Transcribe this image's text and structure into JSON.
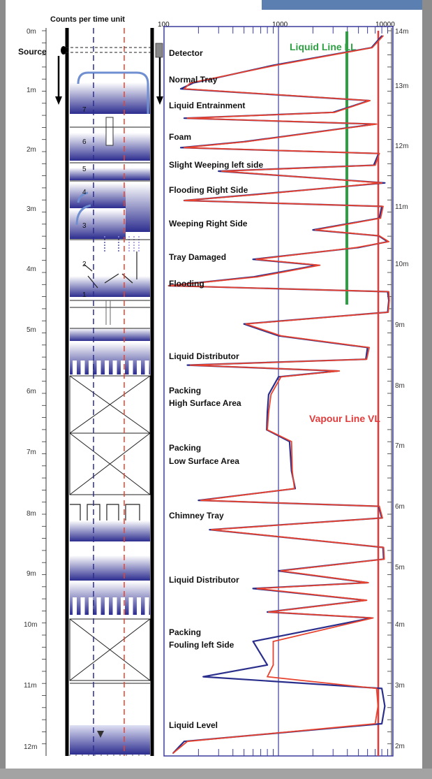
{
  "header": {
    "counts_label": "Counts per time unit"
  },
  "top_scale": {
    "ticks": [
      "100",
      "1000",
      "10000"
    ]
  },
  "left_axis": {
    "ticks": [
      "0m",
      "1m",
      "2m",
      "3m",
      "4m",
      "5m",
      "6m",
      "7m",
      "8m",
      "9m",
      "10m",
      "11m",
      "12m"
    ]
  },
  "right_axis": {
    "ticks": [
      "14m",
      "13m",
      "12m",
      "11m",
      "10m",
      "9m",
      "8m",
      "7m",
      "6m",
      "5m",
      "4m",
      "3m",
      "2m"
    ]
  },
  "column": {
    "source_label": "Source",
    "tray_numbers": [
      "7",
      "6",
      "5",
      "4",
      "3",
      "2",
      "1"
    ]
  },
  "annotations": [
    "Detector",
    "Normal Tray",
    "Liquid Entrainment",
    "Foam",
    "Slight Weeping left side",
    "Flooding Right Side",
    "Weeping Right Side",
    "Tray Damaged",
    "Flooding",
    "Liquid Distributor",
    "Packing",
    "High Surface Area",
    "Packing",
    "Low Surface Area",
    "Chimney Tray",
    "Liquid Distributor",
    "Packing",
    "Fouling left Side",
    "Liquid Level"
  ],
  "lines": {
    "liquid_line": {
      "label": "Liquid Line LL",
      "color": "#2ea043"
    },
    "vapour_line": {
      "label": "Vapour Line  VL",
      "color": "#e03a3a"
    }
  },
  "colors": {
    "scan_red": "#e8432e",
    "scan_blue": "#2b2f8c",
    "grid_blue": "#3b3b9e"
  },
  "chart_data": {
    "type": "line",
    "xlabel": "Counts per time unit",
    "x_scale": "log",
    "xlim": [
      100,
      10000
    ],
    "ylim_m": [
      0,
      12.3
    ],
    "series": [
      {
        "color": "#2b2f8c",
        "y": [
          0.1,
          0.3,
          0.6,
          0.9,
          1.0,
          1.2,
          1.4,
          1.5,
          1.6,
          1.9,
          2.0,
          2.1,
          2.3,
          2.4,
          2.6,
          2.8,
          2.9,
          3.0,
          3.2,
          3.4,
          3.5,
          3.6,
          3.7,
          3.9,
          4.0,
          4.2,
          4.35,
          4.45,
          4.6,
          4.8,
          5.0,
          5.2,
          5.4,
          5.6,
          5.7,
          5.8,
          5.9,
          6.2,
          6.5,
          6.8,
          7.0,
          7.5,
          7.8,
          8.0,
          8.1,
          8.3,
          8.5,
          8.8,
          9.0,
          9.2,
          9.4,
          9.5,
          9.7,
          9.9,
          10.0,
          10.4,
          10.8,
          11.0,
          11.2,
          11.5,
          11.8,
          12.1,
          12.3
        ],
        "x": [
          8000,
          6500,
          900,
          180,
          140,
          6200,
          3000,
          150,
          7000,
          500,
          140,
          7500,
          6800,
          300,
          8500,
          600,
          150,
          8000,
          7600,
          2000,
          7500,
          9000,
          5000,
          600,
          2200,
          600,
          110,
          9000,
          9200,
          9000,
          500,
          1000,
          6000,
          5800,
          160,
          3300,
          1000,
          820,
          800,
          790,
          1250,
          1300,
          1400,
          200,
          7500,
          8000,
          250,
          8200,
          8300,
          1000,
          6000,
          600,
          5800,
          800,
          6500,
          600,
          800,
          220,
          8000,
          8500,
          8000,
          150,
          120
        ]
      },
      {
        "color": "#e8432e",
        "y": [
          0.1,
          0.3,
          0.6,
          0.9,
          1.0,
          1.2,
          1.4,
          1.5,
          1.6,
          1.9,
          2.0,
          2.1,
          2.3,
          2.4,
          2.6,
          2.8,
          2.9,
          3.0,
          3.2,
          3.4,
          3.5,
          3.6,
          3.7,
          3.9,
          4.0,
          4.2,
          4.35,
          4.45,
          4.6,
          4.8,
          5.0,
          5.2,
          5.4,
          5.6,
          5.7,
          5.8,
          5.9,
          6.2,
          6.5,
          6.8,
          7.0,
          7.5,
          7.8,
          8.0,
          8.1,
          8.3,
          8.5,
          8.8,
          9.0,
          9.2,
          9.4,
          9.5,
          9.7,
          9.9,
          10.0,
          10.4,
          10.8,
          11.0,
          11.2,
          11.5,
          11.8,
          12.1,
          12.3
        ],
        "x": [
          8200,
          6600,
          950,
          170,
          150,
          6300,
          3100,
          160,
          7200,
          520,
          150,
          7600,
          7000,
          320,
          8000,
          640,
          150,
          8200,
          7800,
          2100,
          7600,
          9200,
          4800,
          640,
          2300,
          650,
          110,
          9200,
          9300,
          9100,
          520,
          1050,
          6200,
          5900,
          170,
          3400,
          1050,
          860,
          820,
          800,
          1300,
          1320,
          1380,
          210,
          7600,
          8100,
          260,
          8300,
          8400,
          1050,
          6100,
          650,
          5900,
          820,
          6700,
          900,
          900,
          800,
          7200,
          7400,
          7000,
          160,
          120
        ]
      }
    ]
  }
}
